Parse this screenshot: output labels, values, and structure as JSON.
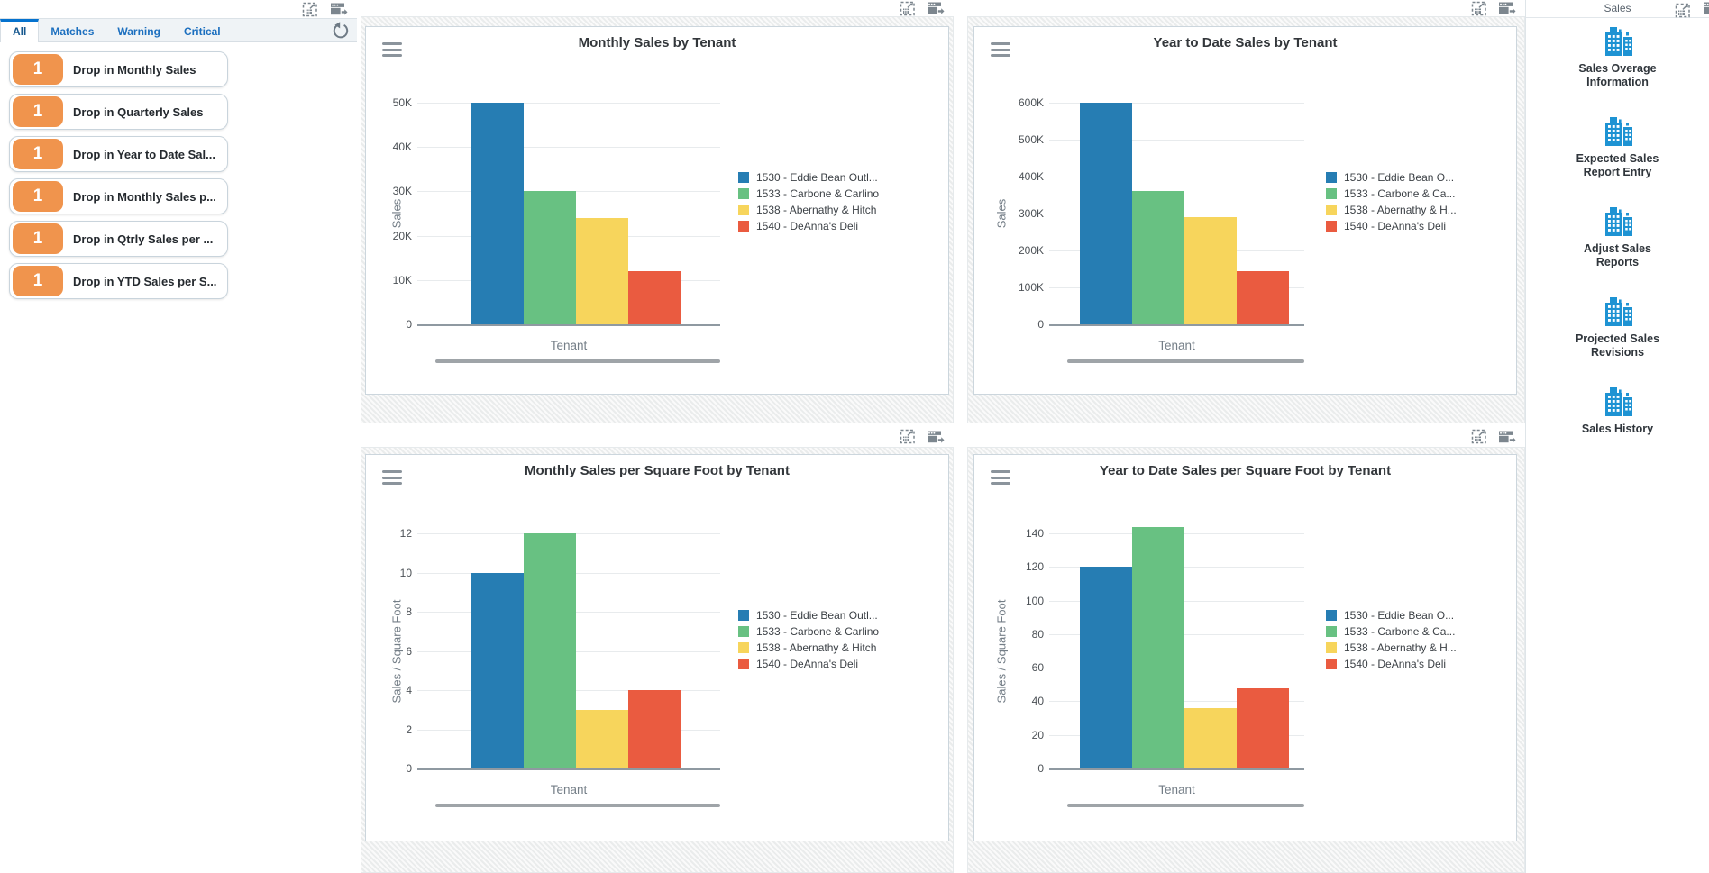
{
  "left_panel": {
    "tabs": [
      {
        "label": "All",
        "selected": true
      },
      {
        "label": "Matches",
        "selected": false
      },
      {
        "label": "Warning",
        "selected": false
      },
      {
        "label": "Critical",
        "selected": false
      }
    ],
    "alerts": [
      {
        "count": "1",
        "label": "Drop in Monthly Sales"
      },
      {
        "count": "1",
        "label": "Drop in Quarterly Sales"
      },
      {
        "count": "1",
        "label": "Drop in Year to Date Sal..."
      },
      {
        "count": "1",
        "label": "Drop in Monthly Sales p..."
      },
      {
        "count": "1",
        "label": "Drop in Qtrly Sales per ..."
      },
      {
        "count": "1",
        "label": "Drop in YTD Sales per S..."
      }
    ]
  },
  "right_panel": {
    "title": "Sales",
    "items": [
      {
        "label": "Sales Overage Information"
      },
      {
        "label": "Expected Sales Report Entry"
      },
      {
        "label": "Adjust Sales Reports"
      },
      {
        "label": "Projected Sales Revisions"
      },
      {
        "label": "Sales History"
      }
    ]
  },
  "icons": {
    "maximize": "dashed-box-expand-arrow",
    "export": "window-with-right-arrow",
    "refresh": "circular-arrow",
    "menu": "hamburger-three-lines",
    "program": "blue-buildings"
  },
  "colors": {
    "series": [
      "#267db3",
      "#68c182",
      "#f7d55c",
      "#ea5b40"
    ],
    "badge": "#f0944d",
    "tab_active_border": "#0572ce",
    "icon_gray": "#7c868e"
  },
  "chart_data": [
    {
      "type": "bar",
      "title": "Monthly Sales by Tenant",
      "xlabel": "Tenant",
      "ylabel": "Sales",
      "ylim": [
        0,
        50000
      ],
      "grid": true,
      "legend_position": "right",
      "yticks": {
        "values": [
          0,
          10000,
          20000,
          30000,
          40000,
          50000
        ],
        "labels": [
          "0",
          "10K",
          "20K",
          "30K",
          "40K",
          "50K"
        ]
      },
      "series": [
        {
          "name": "1530 - Eddie Bean Outl...",
          "value": 50000
        },
        {
          "name": "1533 - Carbone & Carlino",
          "value": 30000
        },
        {
          "name": "1538 - Abernathy & Hitch",
          "value": 24000
        },
        {
          "name": "1540 - DeAnna's Deli",
          "value": 12000
        }
      ]
    },
    {
      "type": "bar",
      "title": "Year to Date Sales by Tenant",
      "xlabel": "Tenant",
      "ylabel": "Sales",
      "ylim": [
        0,
        600000
      ],
      "grid": true,
      "legend_position": "right",
      "yticks": {
        "values": [
          0,
          100000,
          200000,
          300000,
          400000,
          500000,
          600000
        ],
        "labels": [
          "0",
          "100K",
          "200K",
          "300K",
          "400K",
          "500K",
          "600K"
        ]
      },
      "series": [
        {
          "name": "1530 - Eddie Bean O...",
          "value": 600000
        },
        {
          "name": "1533 - Carbone & Ca...",
          "value": 360000
        },
        {
          "name": "1538 - Abernathy & H...",
          "value": 290000
        },
        {
          "name": "1540 - DeAnna's Deli",
          "value": 143000
        }
      ]
    },
    {
      "type": "bar",
      "title": "Monthly Sales per Square Foot by Tenant",
      "xlabel": "Tenant",
      "ylabel": "Sales / Square Foot",
      "ylim": [
        0,
        12
      ],
      "grid": true,
      "legend_position": "right",
      "yticks": {
        "values": [
          0,
          2,
          4,
          6,
          8,
          10,
          12
        ],
        "labels": [
          "0",
          "2",
          "4",
          "6",
          "8",
          "10",
          "12"
        ]
      },
      "series": [
        {
          "name": "1530 - Eddie Bean Outl...",
          "value": 10
        },
        {
          "name": "1533 - Carbone & Carlino",
          "value": 12
        },
        {
          "name": "1538 - Abernathy & Hitch",
          "value": 3
        },
        {
          "name": "1540 - DeAnna's Deli",
          "value": 4
        }
      ]
    },
    {
      "type": "bar",
      "title": "Year to Date Sales per Square Foot by Tenant",
      "xlabel": "Tenant",
      "ylabel": "Sales / Square Foot",
      "ylim": [
        0,
        140
      ],
      "grid": true,
      "legend_position": "right",
      "yticks": {
        "values": [
          0,
          20,
          40,
          60,
          80,
          100,
          120,
          140
        ],
        "labels": [
          "0",
          "20",
          "40",
          "60",
          "80",
          "100",
          "120",
          "140"
        ]
      },
      "series": [
        {
          "name": "1530 - Eddie Bean O...",
          "value": 120
        },
        {
          "name": "1533 - Carbone & Ca...",
          "value": 144
        },
        {
          "name": "1538 - Abernathy & H...",
          "value": 36
        },
        {
          "name": "1540 - DeAnna's Deli",
          "value": 48
        }
      ]
    }
  ]
}
